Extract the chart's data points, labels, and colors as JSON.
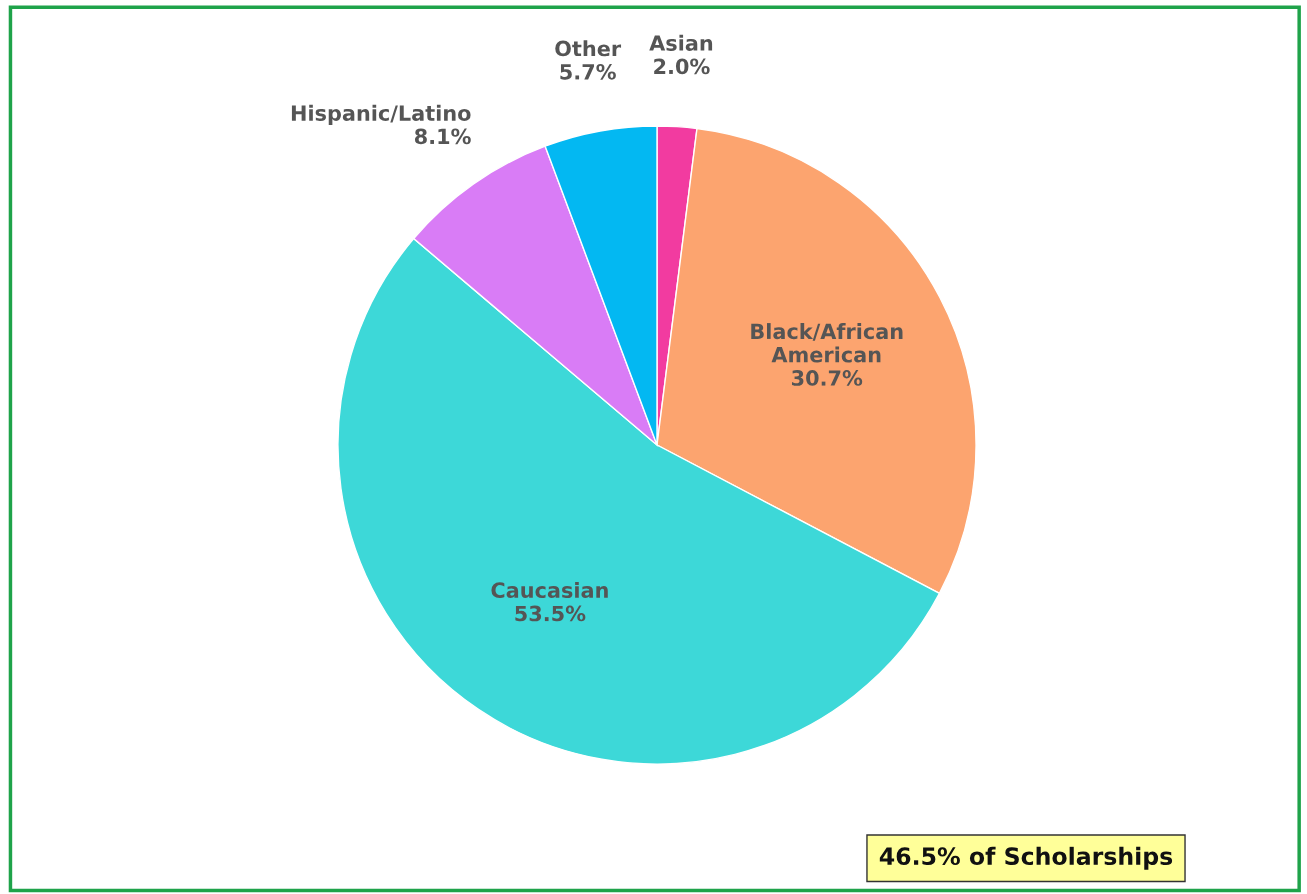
{
  "chart_data": {
    "type": "pie",
    "categories": [
      "Asian",
      "Black/African American",
      "Caucasian",
      "Hispanic/Latino",
      "Other"
    ],
    "values": [
      2.0,
      30.7,
      53.5,
      8.1,
      5.7
    ],
    "value_labels": [
      "2.0%",
      "30.7%",
      "53.5%",
      "8.1%",
      "5.7%"
    ],
    "colors": [
      "#f23ba0",
      "#fca46f",
      "#3dd8d8",
      "#d97cf6",
      "#03b8f2"
    ],
    "legend": false,
    "annotations": [
      "46.5% of Scholarships"
    ]
  }
}
